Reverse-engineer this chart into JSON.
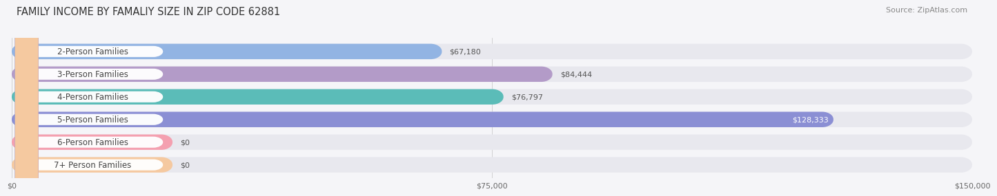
{
  "title": "FAMILY INCOME BY FAMALIY SIZE IN ZIP CODE 62881",
  "source": "Source: ZipAtlas.com",
  "categories": [
    "2-Person Families",
    "3-Person Families",
    "4-Person Families",
    "5-Person Families",
    "6-Person Families",
    "7+ Person Families"
  ],
  "values": [
    67180,
    84444,
    76797,
    128333,
    0,
    0
  ],
  "bar_colors": [
    "#92b4e3",
    "#b39bc8",
    "#5bbcb8",
    "#8b8fd4",
    "#f4a0b0",
    "#f5c9a0"
  ],
  "label_color_inside": [
    "#555555",
    "#555555",
    "#555555",
    "#ffffff",
    "#555555",
    "#555555"
  ],
  "x_max": 150000,
  "x_ticks": [
    0,
    75000,
    150000
  ],
  "x_tick_labels": [
    "$0",
    "$75,000",
    "$150,000"
  ],
  "bg_bar_color": "#e8e8ee",
  "title_fontsize": 10.5,
  "source_fontsize": 8,
  "label_fontsize": 8.5,
  "value_fontsize": 8,
  "tick_fontsize": 8
}
